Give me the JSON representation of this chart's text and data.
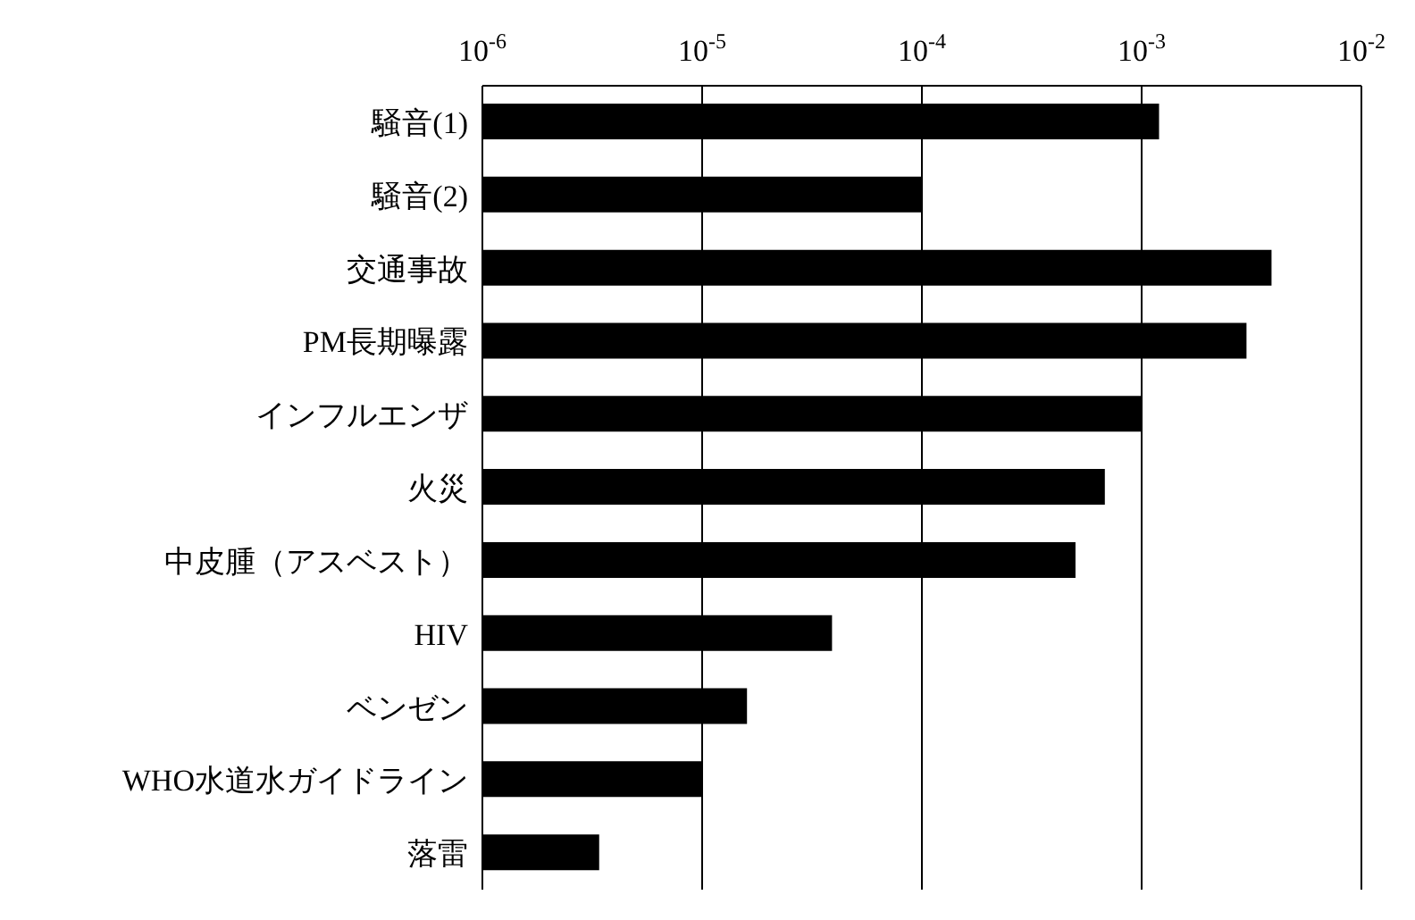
{
  "chart_data": {
    "type": "bar",
    "orientation": "horizontal",
    "log": "x",
    "grid": "x",
    "categories": [
      "騒音(1)",
      "騒音(2)",
      "交通事故",
      "PM長期曝露",
      "インフルエンザ",
      "火災",
      "中皮腫（アスベスト）",
      "HIV",
      "ベンゼン",
      "WHO水道水ガイドライン",
      "落雷"
    ],
    "values": [
      0.0012,
      0.0001,
      0.0039,
      0.003,
      0.001,
      0.00068,
      0.0005,
      3.9e-05,
      1.6e-05,
      1e-05,
      3.4e-06
    ],
    "color": "#000000",
    "xlim": [
      1e-06,
      0.01
    ],
    "xticks": [
      {
        "value": 1e-06,
        "label": "10$^{-6}$"
      },
      {
        "value": 1e-05,
        "label": "10$^{-5}$"
      },
      {
        "value": 0.0001,
        "label": "10$^{-4}$"
      },
      {
        "value": 0.001,
        "label": "10$^{-3}$"
      },
      {
        "value": 0.01,
        "label": "10$^{-2}$"
      }
    ]
  }
}
